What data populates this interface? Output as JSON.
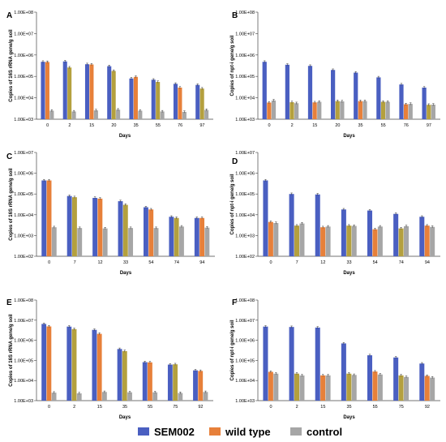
{
  "legend": {
    "items": [
      {
        "label": "SEM002",
        "color": "#4a5fc1"
      },
      {
        "label": "wild type",
        "color": "#e7803a"
      },
      {
        "label": "control",
        "color": "#a6a6a6"
      }
    ]
  },
  "colors": {
    "SEM002": "#4a5fc1",
    "wild_type": "#e7803a",
    "wild_type_shade": "#b4a03e",
    "control": "#a6a6a6"
  },
  "chart_data": [
    {
      "panel": "A",
      "type": "bar",
      "log_scale": true,
      "ylabel": "Copies of 16S rRNA gene/g soil",
      "xlabel": "Days",
      "ylim": [
        1000,
        100000000
      ],
      "yticks": [
        "1.00E+03",
        "1.00E+04",
        "1.00E+05",
        "1.00E+06",
        "1.00E+07",
        "1.00E+08"
      ],
      "categories": [
        "0",
        "2",
        "15",
        "20",
        "35",
        "55",
        "76",
        "97"
      ],
      "series": [
        {
          "name": "SEM002",
          "values": [
            480000,
            500000,
            370000,
            300000,
            80000,
            70000,
            45000,
            40000
          ]
        },
        {
          "name": "wild type",
          "values": [
            470000,
            260000,
            360000,
            180000,
            95000,
            55000,
            30000,
            27000
          ]
        },
        {
          "name": "control",
          "values": [
            2500,
            2300,
            2600,
            2800,
            2500,
            2300,
            2200,
            2700
          ]
        }
      ]
    },
    {
      "panel": "B",
      "type": "bar",
      "log_scale": true,
      "ylabel": "Copies of npt-i gene/g soil",
      "xlabel": "Days",
      "ylim": [
        1000,
        100000000
      ],
      "yticks": [
        "1.00E+03",
        "1.00E+04",
        "1.00E+05",
        "1.00E+06",
        "1.00E+07",
        "1.00E+08"
      ],
      "categories": [
        "0",
        "2",
        "15",
        "20",
        "35",
        "55",
        "76",
        "97"
      ],
      "series": [
        {
          "name": "SEM002",
          "values": [
            480000,
            350000,
            310000,
            200000,
            150000,
            90000,
            42000,
            30000
          ]
        },
        {
          "name": "wild type",
          "values": [
            6000,
            6200,
            6100,
            7000,
            7000,
            6500,
            5000,
            4700
          ]
        },
        {
          "name": "control",
          "values": [
            7500,
            5600,
            6500,
            6800,
            7000,
            6500,
            5200,
            4800
          ]
        }
      ]
    },
    {
      "panel": "C",
      "type": "bar",
      "log_scale": true,
      "ylabel": "Copies of 16S rRNA gene/g soil",
      "xlabel": "Days",
      "ylim": [
        100,
        10000000
      ],
      "yticks": [
        "1.00E+02",
        "1.00E+03",
        "1.00E+04",
        "1.00E+05",
        "1.00E+06",
        "1.00E+07"
      ],
      "categories": [
        "0",
        "7",
        "12",
        "33",
        "54",
        "74",
        "94"
      ],
      "series": [
        {
          "name": "SEM002",
          "values": [
            450000,
            80000,
            65000,
            45000,
            23000,
            8000,
            7000
          ]
        },
        {
          "name": "wild type",
          "values": [
            450000,
            70000,
            60000,
            30000,
            18000,
            7000,
            7000
          ]
        },
        {
          "name": "control",
          "values": [
            2500,
            2300,
            2200,
            2300,
            2300,
            2700,
            2400
          ]
        }
      ]
    },
    {
      "panel": "D",
      "type": "bar",
      "log_scale": true,
      "ylabel": "Copies of npt-i gene/g soil",
      "xlabel": "Days",
      "ylim": [
        100,
        10000000
      ],
      "yticks": [
        "1.00E+02",
        "1.00E+03",
        "1.00E+04",
        "1.00E+05",
        "1.00E+06",
        "1.00E+07"
      ],
      "categories": [
        "0",
        "7",
        "12",
        "33",
        "54",
        "74",
        "94"
      ],
      "series": [
        {
          "name": "SEM002",
          "values": [
            450000,
            100000,
            95000,
            18000,
            16000,
            11000,
            8000
          ]
        },
        {
          "name": "wild type",
          "values": [
            4500,
            3000,
            2500,
            3000,
            2000,
            2200,
            3000
          ]
        },
        {
          "name": "control",
          "values": [
            4000,
            3800,
            2700,
            2900,
            2700,
            2800,
            2600
          ]
        }
      ]
    },
    {
      "panel": "E",
      "type": "bar",
      "log_scale": true,
      "ylabel": "Copies of 16S rRNA gene/g soil",
      "xlabel": "Days",
      "ylim": [
        1000,
        100000000
      ],
      "yticks": [
        "1.00E+03",
        "1.00E+04",
        "1.00E+05",
        "1.00E+06",
        "1.00E+07",
        "1.00E+08"
      ],
      "categories": [
        "0",
        "2",
        "15",
        "35",
        "55",
        "75",
        "92"
      ],
      "series": [
        {
          "name": "SEM002",
          "values": [
            6500000,
            4800000,
            3300000,
            370000,
            82000,
            62000,
            32000
          ]
        },
        {
          "name": "wild type",
          "values": [
            4900000,
            3600000,
            2100000,
            290000,
            80000,
            64000,
            30000
          ]
        },
        {
          "name": "control",
          "values": [
            2500,
            2300,
            2700,
            2600,
            2600,
            2400,
            2700
          ]
        }
      ]
    },
    {
      "panel": "F",
      "type": "bar",
      "log_scale": true,
      "ylabel": "Copies of npt-i gene/g soil",
      "xlabel": "Days",
      "ylim": [
        1000,
        100000000
      ],
      "yticks": [
        "1.00E+03",
        "1.00E+04",
        "1.00E+05",
        "1.00E+06",
        "1.00E+07",
        "1.00E+08"
      ],
      "categories": [
        "0",
        "2",
        "15",
        "35",
        "55",
        "75",
        "92"
      ],
      "series": [
        {
          "name": "SEM002",
          "values": [
            4800000,
            4600000,
            4300000,
            700000,
            180000,
            140000,
            70000
          ]
        },
        {
          "name": "wild type",
          "values": [
            27000,
            22000,
            18000,
            22000,
            28000,
            18000,
            17000
          ]
        },
        {
          "name": "control",
          "values": [
            22000,
            18000,
            18000,
            19000,
            20000,
            15000,
            14000
          ]
        }
      ]
    }
  ]
}
